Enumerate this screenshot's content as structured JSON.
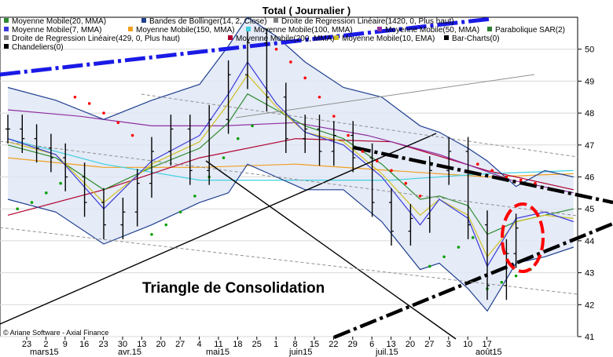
{
  "chart_data": {
    "type": "line",
    "title": "Total  ( Journalier )",
    "annotation": "Triangle de Consolidation",
    "footer": "© Ariane Software - Axial Finance",
    "ylim": [
      41,
      51
    ],
    "y_ticks": [
      41,
      42,
      43,
      44,
      45,
      46,
      47,
      48,
      49,
      50
    ],
    "x_day_ticks": [
      "23",
      "2",
      "9",
      "16",
      "23",
      "30",
      "13",
      "20",
      "27",
      "4",
      "11",
      "18",
      "25",
      "1",
      "8",
      "15",
      "22",
      "29",
      "6",
      "13",
      "20",
      "27",
      "3",
      "10",
      "17"
    ],
    "x_month_labels": [
      "mars15",
      "avr.15",
      "mai15",
      "juin15",
      "juil.15",
      "août15"
    ],
    "legend": [
      {
        "label": "Moyenne Mobile(20, MMA)",
        "color": "#2e8b2e"
      },
      {
        "label": "Bandes de Bollinger(14, 2, Close)",
        "color": "#1f3f8f"
      },
      {
        "label": "Droite de Regression Linéaire(1420, 0, Plus haut)",
        "color": "#808080"
      },
      {
        "label": "Moyenne Mobile(7, MMA)",
        "color": "#3a3ad8"
      },
      {
        "label": "Moyenne Mobile(150, MMA)",
        "color": "#f0a020"
      },
      {
        "label": "Moyenne Mobile(100, MMA)",
        "color": "#40d0e0"
      },
      {
        "label": "Moyenne Mobile(50, MMA)",
        "color": "#9030a0"
      },
      {
        "label": "Parabolique SAR(2)",
        "color": "#2e7d32"
      },
      {
        "label": "Droite de Regression Linéaire(429, 0, Plus haut)",
        "color": "#808080"
      },
      {
        "label": "Moyenne Mobile(200, MMA)",
        "color": "#b00030"
      },
      {
        "label": "Moyenne Mobile(10, EMA)",
        "color": "#d0c020"
      },
      {
        "label": "Bar-Charts(0)",
        "color": "#000000"
      },
      {
        "label": "Chandeliers(0)",
        "color": "#000000"
      }
    ],
    "series": [
      {
        "name": "Bar-Charts(0)",
        "color": "#000000",
        "x": [
          0,
          3,
          6,
          9,
          12,
          16,
          20,
          24,
          27,
          30,
          34,
          38,
          42,
          46,
          50,
          54,
          58,
          62,
          65,
          68,
          72,
          76,
          80,
          84,
          88,
          92,
          96,
          100,
          104,
          106
        ],
        "values": [
          47.5,
          47.2,
          46.9,
          46.6,
          46.0,
          45.2,
          44.5,
          44.9,
          45.8,
          46.8,
          47.5,
          46.2,
          47.8,
          49.2,
          50.2,
          48.5,
          47.2,
          47.5,
          46.8,
          47.3,
          46.6,
          45.2,
          44.3,
          44.7,
          46.2,
          46.8,
          44.5,
          42.6,
          43.6,
          44.4
        ]
      },
      {
        "name": "Moyenne Mobile(20, MMA)",
        "color": "#2e8b2e",
        "x": [
          0,
          10,
          20,
          30,
          40,
          46,
          50,
          56,
          62,
          70,
          78,
          86,
          90,
          96,
          100,
          106,
          112,
          118
        ],
        "values": [
          47.0,
          46.6,
          45.6,
          46.3,
          46.9,
          47.7,
          48.6,
          48.1,
          47.6,
          47.2,
          46.4,
          45.3,
          45.4,
          45.1,
          44.2,
          44.6,
          44.8,
          45.0
        ]
      },
      {
        "name": "Moyenne Mobile(50, MMA)",
        "color": "#9030a0",
        "x": [
          0,
          15,
          30,
          45,
          60,
          75,
          90,
          105,
          118
        ],
        "values": [
          48.1,
          47.9,
          47.6,
          47.6,
          47.7,
          47.3,
          46.7,
          45.9,
          45.5
        ]
      },
      {
        "name": "Moyenne Mobile(100, MMA)",
        "color": "#40d0e0",
        "x": [
          0,
          20,
          40,
          60,
          80,
          100,
          118
        ],
        "values": [
          47.2,
          46.4,
          45.9,
          45.9,
          45.9,
          46.1,
          46.2
        ]
      },
      {
        "name": "Moyenne Mobile(150, MMA)",
        "color": "#f0a020",
        "x": [
          0,
          20,
          40,
          60,
          80,
          100,
          118
        ],
        "values": [
          46.6,
          46.3,
          46.3,
          46.4,
          46.2,
          46.0,
          46.1
        ]
      },
      {
        "name": "Moyenne Mobile(200, MMA)",
        "color": "#b00030",
        "x": [
          0,
          20,
          40,
          60,
          80,
          100,
          118
        ],
        "values": [
          44.8,
          45.6,
          46.6,
          47.2,
          47.1,
          46.2,
          45.6
        ]
      },
      {
        "name": "Bandes de Bollinger(14, 2, Close)",
        "color": "#1f3f8f",
        "x": [
          0,
          10,
          20,
          30,
          40,
          46,
          50,
          56,
          62,
          70,
          78,
          86,
          90,
          96,
          100,
          106,
          112,
          118
        ],
        "values": [
          48.8,
          48.4,
          47.8,
          48.4,
          48.9,
          50.1,
          51.0,
          50.4,
          49.6,
          48.8,
          48.5,
          47.6,
          47.4,
          46.9,
          46.5,
          45.7,
          46.2,
          46.0
        ]
      },
      {
        "name": "Bandes de Bollinger lower",
        "color": "#1f3f8f",
        "x": [
          0,
          10,
          20,
          30,
          40,
          46,
          50,
          56,
          62,
          70,
          78,
          86,
          90,
          96,
          100,
          106,
          112,
          118
        ],
        "values": [
          45.3,
          44.9,
          43.9,
          44.5,
          45.2,
          45.5,
          46.4,
          46.0,
          45.6,
          45.6,
          44.6,
          43.1,
          43.3,
          42.5,
          41.8,
          43.3,
          43.5,
          43.8
        ]
      },
      {
        "name": "Moyenne Mobile(7, MMA)",
        "color": "#3a3ad8",
        "x": [
          0,
          10,
          20,
          30,
          40,
          46,
          50,
          56,
          62,
          70,
          78,
          86,
          90,
          96,
          100,
          106,
          112,
          118
        ],
        "values": [
          47.2,
          46.7,
          45.0,
          46.5,
          47.3,
          48.6,
          49.6,
          48.3,
          47.4,
          47.0,
          46.0,
          44.5,
          45.3,
          44.7,
          43.2,
          44.7,
          44.9,
          44.6
        ]
      },
      {
        "name": "Moyenne Mobile(10, EMA)",
        "color": "#d0c020",
        "x": [
          0,
          10,
          20,
          30,
          40,
          46,
          50,
          56,
          62,
          70,
          78,
          86,
          90,
          96,
          100,
          106,
          112,
          118
        ],
        "values": [
          47.1,
          46.7,
          45.2,
          46.4,
          47.1,
          48.3,
          49.2,
          48.2,
          47.4,
          47.1,
          46.1,
          44.8,
          45.3,
          44.8,
          43.5,
          44.6,
          44.8,
          44.7
        ]
      },
      {
        "name": "Parabolique SAR(2) above",
        "color": "#ff0000",
        "x": [
          14,
          17,
          20,
          23,
          26,
          56,
          59,
          62,
          65,
          68,
          71,
          74,
          77,
          80,
          83,
          86,
          98,
          101,
          104,
          107,
          110
        ],
        "values": [
          48.5,
          48.3,
          48.0,
          47.7,
          47.3,
          50.0,
          49.6,
          49.1,
          48.5,
          47.9,
          47.3,
          46.8,
          46.5,
          46.2,
          45.8,
          45.4,
          46.4,
          46.2,
          46.0,
          45.9,
          45.8
        ]
      },
      {
        "name": "Parabolique SAR(2) below",
        "color": "#00a000",
        "x": [
          2,
          5,
          8,
          11,
          30,
          33,
          36,
          39,
          42,
          45,
          48,
          51,
          88,
          91,
          94,
          97,
          100,
          103,
          106,
          109
        ],
        "values": [
          45.0,
          45.2,
          45.5,
          45.8,
          44.2,
          44.5,
          44.9,
          45.4,
          46.0,
          46.6,
          47.2,
          47.6,
          43.2,
          43.5,
          43.8,
          44.1,
          42.5,
          42.7,
          42.9,
          43.1
        ]
      }
    ]
  }
}
